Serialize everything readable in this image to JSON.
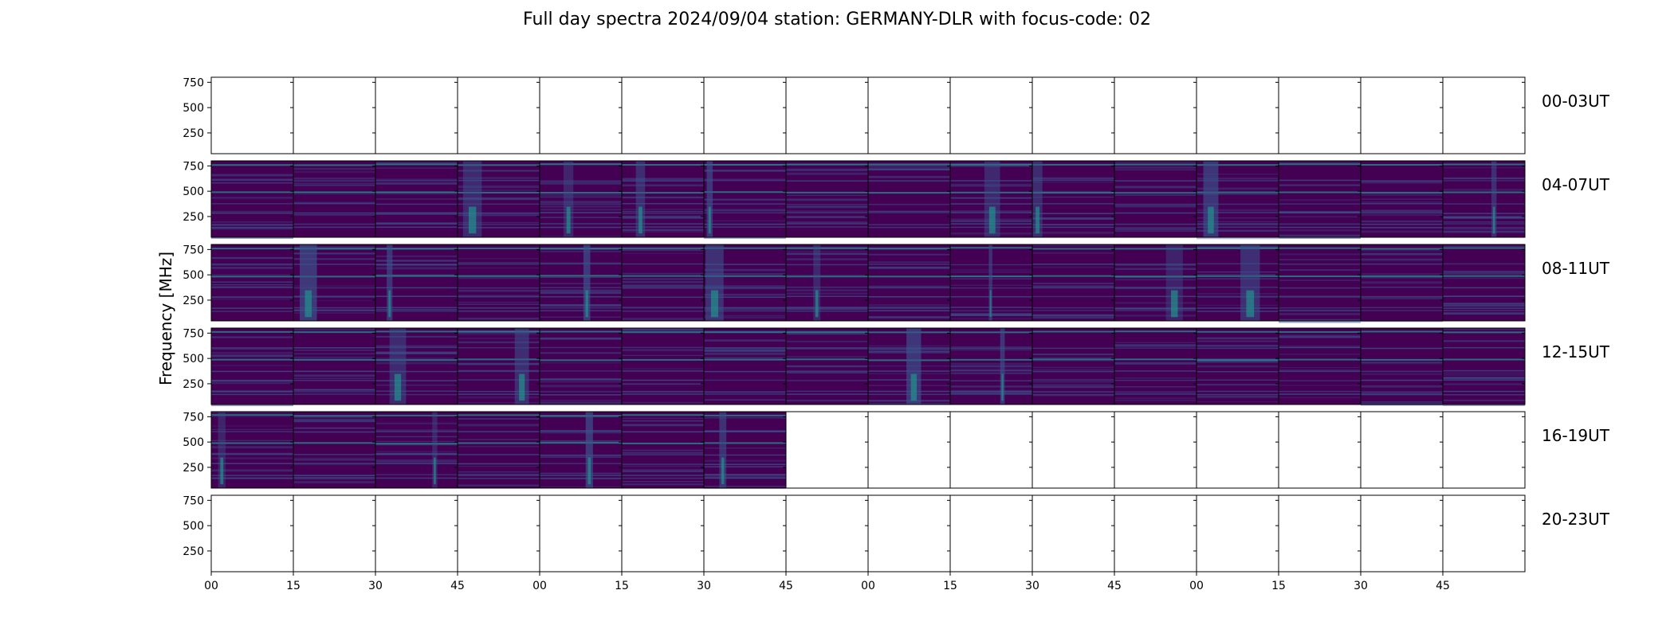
{
  "chart_data": {
    "type": "heatmap",
    "title": "Full day spectra 2024/09/04 station: GERMANY-DLR with focus-code: 02",
    "ylabel": "Frequency [MHz]",
    "y_ticks": [
      "250",
      "500",
      "750"
    ],
    "ylim": [
      45,
      800
    ],
    "x_tick_labels": [
      "00",
      "15",
      "30",
      "45",
      "00",
      "15",
      "30",
      "45",
      "00",
      "15",
      "30",
      "45",
      "00",
      "15",
      "30",
      "45"
    ],
    "panels_per_row": 16,
    "colormap": "viridis",
    "rows": [
      {
        "label": "00-03UT",
        "panels_with_data": 0
      },
      {
        "label": "04-07UT",
        "panels_with_data": 16
      },
      {
        "label": "08-11UT",
        "panels_with_data": 16
      },
      {
        "label": "12-15UT",
        "panels_with_data": 16
      },
      {
        "label": "16-19UT",
        "panels_with_data": 7
      },
      {
        "label": "20-23UT",
        "panels_with_data": 0
      }
    ],
    "colors": {
      "background": "#440154",
      "band_mid": "#3b528b",
      "band_high": "#21918c",
      "band_peak": "#5ec962"
    }
  }
}
